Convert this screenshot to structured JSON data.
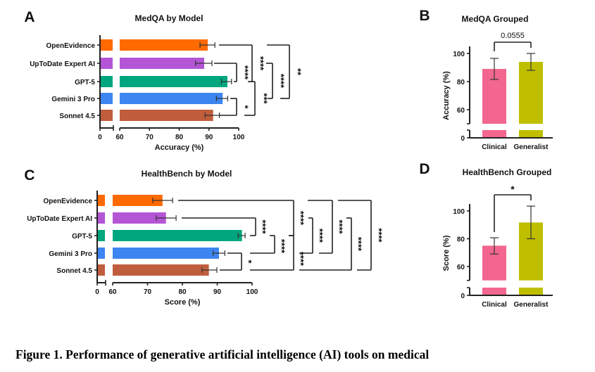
{
  "caption": "Figure 1. Performance of generative artificial intelligence (AI) tools on medical",
  "chart_data": [
    {
      "panel": "A",
      "type": "bar",
      "orientation": "horizontal",
      "title": "MedQA by Model",
      "xlabel": "Accuracy (%)",
      "axis_break": [
        0,
        60
      ],
      "xlim": [
        60,
        100
      ],
      "xticks": [
        "0",
        "60",
        "70",
        "80",
        "90",
        "100"
      ],
      "categories": [
        "OpenEvidence",
        "UpToDate Expert AI",
        "GPT-5",
        "Gemini 3 Pro",
        "Sonnet 4.5"
      ],
      "colors": [
        "#ff6a00",
        "#b455d6",
        "#00a77e",
        "#3d85f0",
        "#c05d3d"
      ],
      "values": [
        89.6,
        88.4,
        96.2,
        94.6,
        91.4
      ],
      "error_low": [
        87.0,
        85.5,
        94.2,
        92.5,
        88.7
      ],
      "error_high": [
        92.0,
        91.0,
        97.6,
        96.3,
        93.5
      ],
      "comparisons": [
        {
          "pair": [
            "UpToDate Expert AI",
            "GPT-5"
          ],
          "label": "****"
        },
        {
          "pair": [
            "OpenEvidence",
            "GPT-5"
          ],
          "label": "****"
        },
        {
          "pair": [
            "Gemini 3 Pro",
            "Sonnet 4.5"
          ],
          "label": "*"
        },
        {
          "pair": [
            "GPT-5",
            "Sonnet 4.5"
          ],
          "label": "***"
        },
        {
          "pair": [
            "UpToDate Expert AI",
            "Gemini 3 Pro"
          ],
          "label": "****"
        },
        {
          "pair": [
            "OpenEvidence",
            "Gemini 3 Pro"
          ],
          "label": "**"
        }
      ]
    },
    {
      "panel": "B",
      "type": "bar",
      "title": "MedQA Grouped",
      "ylabel": "Accuracy (%)",
      "axis_break": [
        0,
        50
      ],
      "ylim": [
        50,
        100
      ],
      "yticks": [
        "0",
        "60",
        "80",
        "100"
      ],
      "categories": [
        "Clinical",
        "Generalist"
      ],
      "colors": [
        "#f2668f",
        "#bfbf00"
      ],
      "values": [
        89.0,
        94.0
      ],
      "error_low": [
        81.5,
        88.0
      ],
      "error_high": [
        96.5,
        100.0
      ],
      "comparisons": [
        {
          "pair": [
            "Clinical",
            "Generalist"
          ],
          "label": "0.0555"
        }
      ]
    },
    {
      "panel": "C",
      "type": "bar",
      "orientation": "horizontal",
      "title": "HealthBench by Model",
      "xlabel": "Score (%)",
      "axis_break": [
        0,
        60
      ],
      "xlim": [
        60,
        100
      ],
      "xticks": [
        "0",
        "60",
        "70",
        "80",
        "90",
        "100"
      ],
      "categories": [
        "OpenEvidence",
        "UpToDate Expert AI",
        "GPT-5",
        "Gemini 3 Pro",
        "Sonnet 4.5"
      ],
      "colors": [
        "#ff6a00",
        "#b455d6",
        "#00a77e",
        "#3d85f0",
        "#c05d3d"
      ],
      "values": [
        74.3,
        75.3,
        97.1,
        90.5,
        87.6
      ],
      "error_low": [
        71.5,
        72.5,
        96.0,
        88.8,
        85.6
      ],
      "error_high": [
        77.2,
        78.2,
        98.0,
        92.2,
        89.9
      ],
      "comparisons": [
        {
          "pair": [
            "UpToDate Expert AI",
            "GPT-5"
          ],
          "label": "****"
        },
        {
          "pair": [
            "Gemini 3 Pro",
            "Sonnet 4.5"
          ],
          "label": "*"
        },
        {
          "pair": [
            "GPT-5",
            "Gemini 3 Pro"
          ],
          "label": "****"
        },
        {
          "pair": [
            "OpenEvidence",
            "GPT-5"
          ],
          "label": "****"
        },
        {
          "pair": [
            "GPT-5",
            "Sonnet 4.5"
          ],
          "label": "****"
        },
        {
          "pair": [
            "UpToDate Expert AI",
            "Gemini 3 Pro"
          ],
          "label": "****"
        },
        {
          "pair": [
            "OpenEvidence",
            "Gemini 3 Pro"
          ],
          "label": "****"
        },
        {
          "pair": [
            "UpToDate Expert AI",
            "Sonnet 4.5"
          ],
          "label": "****"
        },
        {
          "pair": [
            "OpenEvidence",
            "Sonnet 4.5"
          ],
          "label": "****"
        }
      ]
    },
    {
      "panel": "D",
      "type": "bar",
      "title": "HealthBench Grouped",
      "ylabel": "Score (%)",
      "axis_break": [
        0,
        50
      ],
      "ylim": [
        50,
        100
      ],
      "yticks": [
        "0",
        "60",
        "80",
        "100"
      ],
      "categories": [
        "Clinical",
        "Generalist"
      ],
      "colors": [
        "#f2668f",
        "#bfbf00"
      ],
      "values": [
        75.0,
        91.7
      ],
      "error_low": [
        69.0,
        80.0
      ],
      "error_high": [
        80.7,
        103.5
      ],
      "comparisons": [
        {
          "pair": [
            "Clinical",
            "Generalist"
          ],
          "label": "*"
        }
      ]
    }
  ]
}
